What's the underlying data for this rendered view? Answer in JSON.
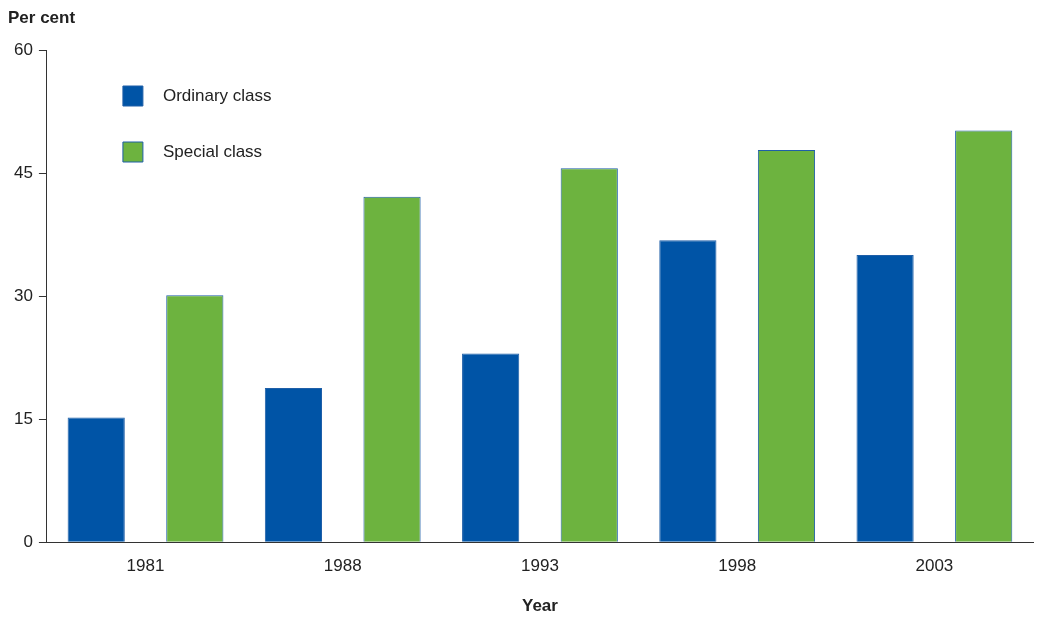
{
  "chart_data": {
    "type": "bar",
    "ylabel": "Per cent",
    "xlabel": "Year",
    "categories": [
      "1981",
      "1988",
      "1993",
      "1998",
      "2003"
    ],
    "series": [
      {
        "name": "Ordinary class",
        "color": "#0054a6",
        "values": [
          15.2,
          18.8,
          23,
          36.8,
          35
        ]
      },
      {
        "name": "Special class",
        "color": "#6db33f",
        "values": [
          30.1,
          42.1,
          45.6,
          47.8,
          50.2
        ]
      }
    ],
    "ylim": [
      0,
      60
    ],
    "yticks": [
      0,
      15,
      30,
      45,
      60
    ],
    "grid": false,
    "legend": "top left"
  }
}
